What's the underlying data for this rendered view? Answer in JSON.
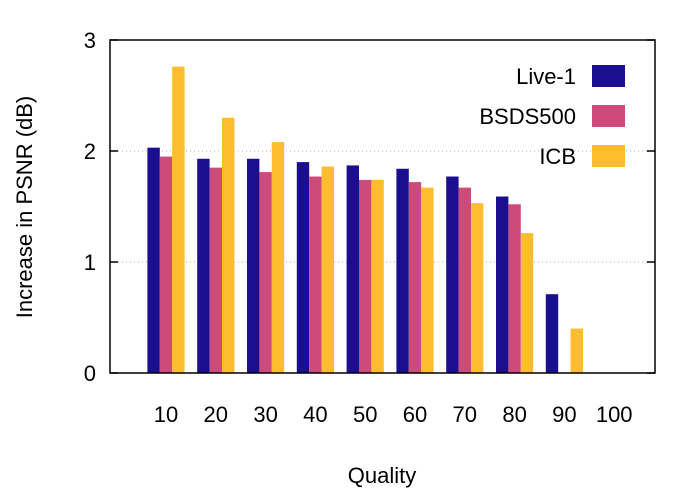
{
  "chart_data": {
    "type": "bar",
    "xlabel": "Quality",
    "ylabel": "Increase in PSNR (dB)",
    "ylim": [
      0,
      3
    ],
    "yticks": [
      "0",
      "1",
      "2",
      "3"
    ],
    "grid": "dotted horizontal",
    "legend_position": "top-right",
    "categories": [
      "10",
      "20",
      "30",
      "40",
      "50",
      "60",
      "70",
      "80",
      "90",
      "100"
    ],
    "series": [
      {
        "name": "Live-1",
        "color": "#1a0f8f",
        "values": [
          2.03,
          1.93,
          1.93,
          1.9,
          1.87,
          1.84,
          1.77,
          1.59,
          0.71,
          0
        ]
      },
      {
        "name": "BSDS500",
        "color": "#cd4b7b",
        "values": [
          1.95,
          1.85,
          1.81,
          1.77,
          1.74,
          1.72,
          1.67,
          1.52,
          0,
          0
        ]
      },
      {
        "name": "ICB",
        "color": "#fdbd2e",
        "values": [
          2.76,
          2.3,
          2.08,
          1.86,
          1.74,
          1.67,
          1.53,
          1.26,
          0.4,
          0
        ]
      }
    ]
  }
}
